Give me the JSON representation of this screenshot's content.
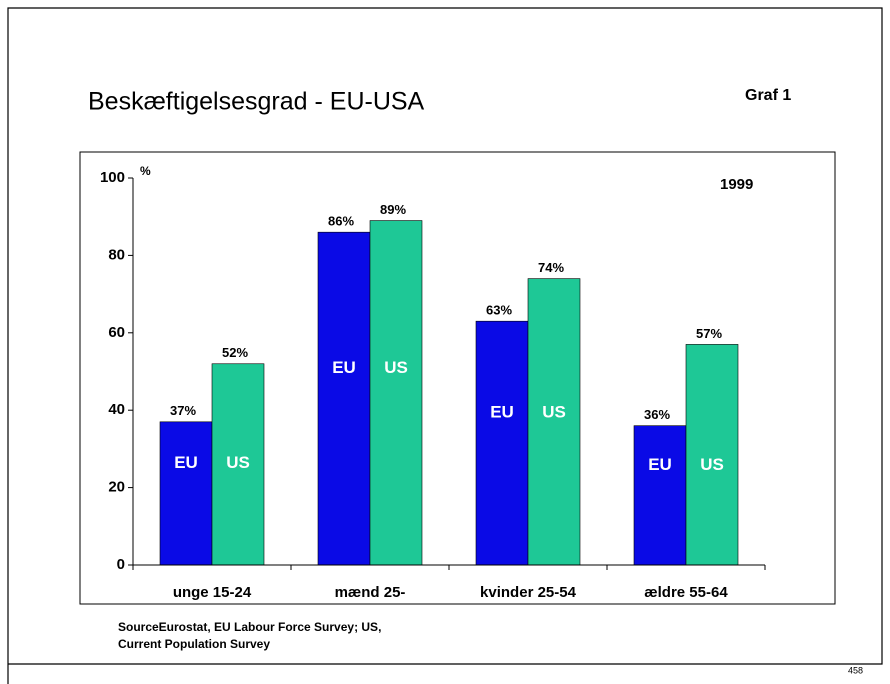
{
  "chart_data": {
    "type": "bar",
    "title": "Beskæftigelsesgrad - EU-USA",
    "label": "Graf 1",
    "y_label": "%",
    "annotation": "1999",
    "source": [
      "SourceEurostat, EU Labour Force Survey; US,",
      "Current Population Survey"
    ],
    "page_number": "458",
    "categories": [
      "unge 15-24",
      "mænd 25-",
      "kvinder 25-54",
      "ældre 55-64"
    ],
    "series": [
      {
        "name": "EU",
        "color": "#0a0ae6",
        "values": [
          37,
          86,
          63,
          36
        ],
        "value_labels": [
          "37%",
          "86%",
          "63%",
          "36%"
        ]
      },
      {
        "name": "US",
        "color": "#1ec896",
        "values": [
          52,
          89,
          74,
          57
        ],
        "value_labels": [
          "52%",
          "89%",
          "74%",
          "57%"
        ]
      }
    ],
    "ylim": [
      0,
      100
    ],
    "yticks": [
      0,
      20,
      40,
      60,
      80,
      100
    ]
  }
}
